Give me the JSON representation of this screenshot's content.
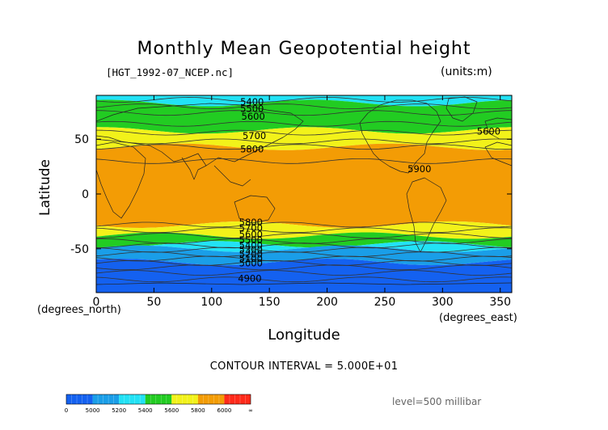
{
  "title": "Monthly Mean Geopotential height",
  "subtitle": "[HGT_1992-07_NCEP.nc]",
  "units_label": "(units:m)",
  "contour_interval": "CONTOUR INTERVAL = 5.000E+01",
  "level_label": "level=500 millibar",
  "chart_data": {
    "type": "heatmap",
    "title": "Monthly Mean Geopotential height",
    "xlabel": "Longitude",
    "ylabel": "Latitude",
    "x_units": "(degrees_east)",
    "y_units": "(degrees_north)",
    "xlim": [
      0,
      360
    ],
    "ylim": [
      -90,
      90
    ],
    "x_ticks": [
      0,
      50,
      100,
      150,
      200,
      250,
      300,
      350
    ],
    "y_ticks": [
      50,
      0,
      -50
    ],
    "bands": [
      {
        "lat_from": 90,
        "lat_to": 83,
        "color": "#22e2f5"
      },
      {
        "lat_from": 83,
        "lat_to": 58,
        "color": "#22cc22"
      },
      {
        "lat_from": 58,
        "lat_to": 43,
        "color": "#f2f21a"
      },
      {
        "lat_from": 43,
        "lat_to": -28,
        "color": "#f39c05"
      },
      {
        "lat_from": -28,
        "lat_to": -38,
        "color": "#f2f21a"
      },
      {
        "lat_from": -38,
        "lat_to": -46,
        "color": "#22cc22"
      },
      {
        "lat_from": -46,
        "lat_to": -50,
        "color": "#22e2f5"
      },
      {
        "lat_from": -50,
        "lat_to": -62,
        "color": "#1a9ee8"
      },
      {
        "lat_from": -62,
        "lat_to": -90,
        "color": "#1461f0"
      }
    ],
    "contour_labels": [
      {
        "text": "5400",
        "lon": 135,
        "lat": 84
      },
      {
        "text": "5500",
        "lon": 135,
        "lat": 78
      },
      {
        "text": "5600",
        "lon": 136,
        "lat": 71
      },
      {
        "text": "5700",
        "lon": 137,
        "lat": 53
      },
      {
        "text": "5800",
        "lon": 135,
        "lat": 41
      },
      {
        "text": "5600",
        "lon": 340,
        "lat": 57
      },
      {
        "text": "5900",
        "lon": 280,
        "lat": 23
      },
      {
        "text": "5800",
        "lon": 134,
        "lat": -26
      },
      {
        "text": "5700",
        "lon": 134,
        "lat": -31
      },
      {
        "text": "5600",
        "lon": 134,
        "lat": -37
      },
      {
        "text": "5500",
        "lon": 134,
        "lat": -42
      },
      {
        "text": "5400",
        "lon": 134,
        "lat": -47
      },
      {
        "text": "5300",
        "lon": 134,
        "lat": -51
      },
      {
        "text": "5200",
        "lon": 134,
        "lat": -55
      },
      {
        "text": "5100",
        "lon": 134,
        "lat": -59
      },
      {
        "text": "5000",
        "lon": 134,
        "lat": -63
      },
      {
        "text": "4900",
        "lon": 133,
        "lat": -77
      }
    ],
    "colorbar": {
      "colors": [
        "#1461f0",
        "#1a9ee8",
        "#22e2f5",
        "#22cc22",
        "#f2f21a",
        "#f39c05",
        "#ff2a1a"
      ],
      "tick_labels": [
        "0",
        "5000",
        "5200",
        "5400",
        "5600",
        "5800",
        "6000",
        "∞"
      ]
    }
  }
}
